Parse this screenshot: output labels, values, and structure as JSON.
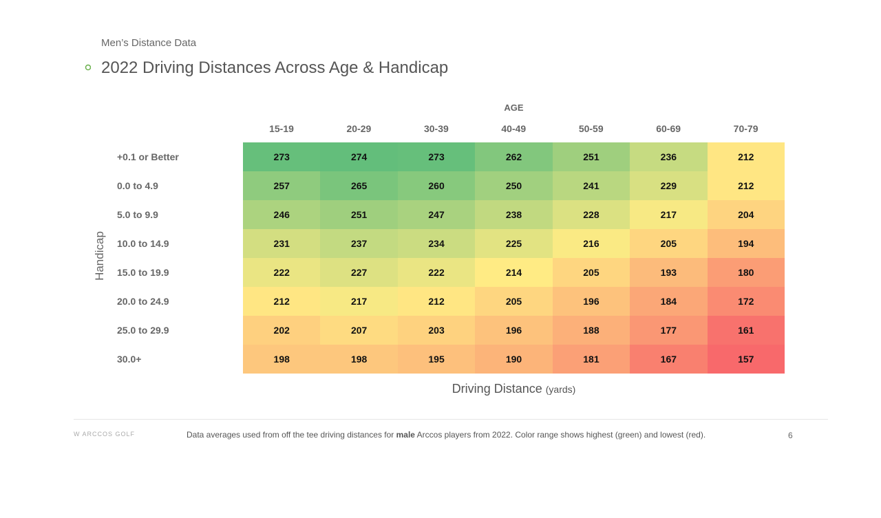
{
  "header": {
    "subtitle": "Men’s Distance Data",
    "title": "2022 Driving Distances Across Age & Handicap",
    "accent_color": "#6ab04c"
  },
  "chart_data": {
    "type": "heatmap",
    "title": "2022 Driving Distances Across Age & Handicap",
    "column_axis_label": "AGE",
    "row_axis_label": "Handicap",
    "xlabel": "Driving Distance",
    "xlabel_unit": "(yards)",
    "columns": [
      "15-19",
      "20-29",
      "30-39",
      "40-49",
      "50-59",
      "60-69",
      "70-79"
    ],
    "rows": [
      "+0.1 or Better",
      "0.0 to 4.9",
      "5.0 to 9.9",
      "10.0 to 14.9",
      "15.0 to 19.9",
      "20.0 to 24.9",
      "25.0 to 29.9",
      "30.0+"
    ],
    "values": [
      [
        273,
        274,
        273,
        262,
        251,
        236,
        212
      ],
      [
        257,
        265,
        260,
        250,
        241,
        229,
        212
      ],
      [
        246,
        251,
        247,
        238,
        228,
        217,
        204
      ],
      [
        231,
        237,
        234,
        225,
        216,
        205,
        194
      ],
      [
        222,
        227,
        222,
        214,
        205,
        193,
        180
      ],
      [
        212,
        217,
        212,
        205,
        196,
        184,
        172
      ],
      [
        202,
        207,
        203,
        196,
        188,
        177,
        161
      ],
      [
        198,
        198,
        195,
        190,
        181,
        167,
        157
      ]
    ],
    "color_scale": {
      "high": "#63be7b",
      "mid": "#ffeb84",
      "low": "#f8696b"
    }
  },
  "footer": {
    "logo": "ARCCOS GOLF",
    "note_before": "Data averages used from off the tee driving distances for ",
    "note_bold": "male",
    "note_after": " Arccos players from 2022. Color range shows highest (green) and lowest (red).",
    "page": "6"
  }
}
